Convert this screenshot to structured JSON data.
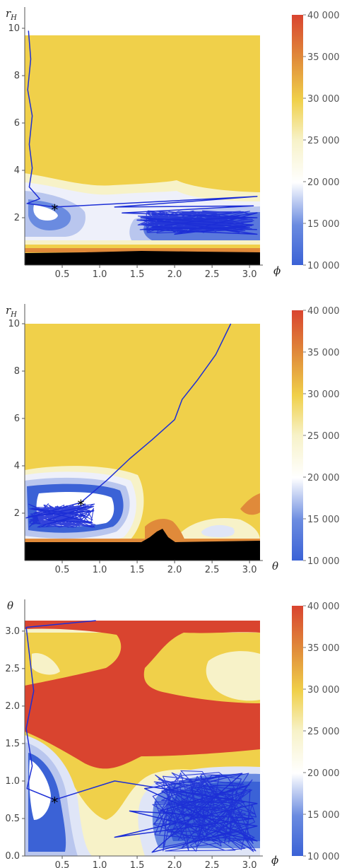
{
  "colors": {
    "low": "#3b62d6",
    "mid": "#ffffff",
    "high": "#d9442f",
    "plateau": "#f0d04a",
    "excluded": "#000000",
    "trajectory": "#1d2fd6",
    "marker": "#000000"
  },
  "chart_data": [
    {
      "type": "heatmap",
      "subtype": "filled-contour-with-trajectory",
      "xlabel": "ϕ",
      "ylabel": "r_H",
      "ylabel_main": "r",
      "ylabel_sub": "H",
      "xlim": [
        0,
        3.14
      ],
      "ylim": [
        0,
        10
      ],
      "xticks": [
        0.5,
        1.0,
        1.5,
        2.0,
        2.5,
        3.0
      ],
      "xtick_labels": [
        "0.5",
        "1.0",
        "1.5",
        "2.0",
        "2.5",
        "3.0"
      ],
      "yticks": [
        2,
        4,
        6,
        8,
        10
      ],
      "ytick_labels": [
        "2",
        "4",
        "6",
        "8",
        "10"
      ],
      "colorbar": {
        "min": 10000,
        "max": 40000,
        "ticks": [
          "10 000",
          "15 000",
          "20 000",
          "25 000",
          "30 000",
          "35 000",
          "40 000"
        ]
      },
      "optimum": {
        "x": 0.4,
        "y": 2.45
      },
      "trajectory": [
        [
          0.05,
          9.9
        ],
        [
          0.08,
          8.7
        ],
        [
          0.04,
          7.4
        ],
        [
          0.1,
          6.3
        ],
        [
          0.06,
          5.1
        ],
        [
          0.1,
          4.1
        ],
        [
          0.06,
          3.3
        ],
        [
          0.2,
          2.8
        ],
        [
          0.03,
          2.6
        ],
        [
          0.4,
          2.45
        ],
        [
          3.1,
          2.9
        ],
        [
          1.2,
          2.45
        ],
        [
          3.05,
          2.5
        ],
        [
          1.3,
          2.2
        ],
        [
          3.1,
          2.0
        ],
        [
          1.5,
          1.9
        ],
        [
          3.0,
          1.6
        ],
        [
          1.6,
          1.5
        ],
        [
          3.1,
          1.3
        ],
        [
          1.55,
          2.0
        ],
        [
          3.05,
          1.7
        ],
        [
          2.0,
          1.3
        ],
        [
          3.1,
          2.2
        ],
        [
          1.7,
          1.6
        ],
        [
          3.1,
          1.5
        ]
      ],
      "dense_region": {
        "x": [
          1.5,
          3.1
        ],
        "y": [
          1.35,
          2.3
        ]
      }
    },
    {
      "type": "heatmap",
      "subtype": "filled-contour-with-trajectory",
      "xlabel": "θ",
      "ylabel": "r_H",
      "ylabel_main": "r",
      "ylabel_sub": "H",
      "xlim": [
        0,
        3.14
      ],
      "ylim": [
        0,
        10
      ],
      "xticks": [
        0.5,
        1.0,
        1.5,
        2.0,
        2.5,
        3.0
      ],
      "xtick_labels": [
        "0.5",
        "1.0",
        "1.5",
        "2.0",
        "2.5",
        "3.0"
      ],
      "yticks": [
        2,
        4,
        6,
        8,
        10
      ],
      "ytick_labels": [
        "2",
        "4",
        "6",
        "8",
        "10"
      ],
      "colorbar": {
        "min": 10000,
        "max": 40000,
        "ticks": [
          "10 000",
          "15 000",
          "20 000",
          "25 000",
          "30 000",
          "35 000",
          "40 000"
        ]
      },
      "optimum": {
        "x": 0.75,
        "y": 2.45
      },
      "trajectory": [
        [
          2.75,
          10.0
        ],
        [
          2.55,
          8.7
        ],
        [
          2.3,
          7.6
        ],
        [
          2.1,
          6.8
        ],
        [
          2.0,
          5.95
        ],
        [
          1.7,
          5.1
        ],
        [
          1.4,
          4.3
        ],
        [
          1.1,
          3.4
        ],
        [
          0.75,
          2.45
        ],
        [
          0.02,
          1.8
        ],
        [
          0.85,
          2.3
        ],
        [
          0.3,
          1.7
        ],
        [
          0.9,
          1.6
        ],
        [
          0.1,
          2.2
        ],
        [
          0.8,
          1.9
        ],
        [
          0.25,
          1.5
        ],
        [
          0.92,
          2.1
        ],
        [
          0.15,
          1.9
        ]
      ],
      "dense_region": {
        "x": [
          0.05,
          0.95
        ],
        "y": [
          1.4,
          2.4
        ]
      }
    },
    {
      "type": "heatmap",
      "subtype": "filled-contour-with-trajectory",
      "xlabel": "ϕ",
      "ylabel": "θ",
      "ylabel_main": "θ",
      "ylabel_sub": "",
      "xlim": [
        0,
        3.14
      ],
      "ylim": [
        0,
        3.14
      ],
      "xticks": [
        0.5,
        1.0,
        1.5,
        2.0,
        2.5,
        3.0
      ],
      "xtick_labels": [
        "0.5",
        "1.0",
        "1.5",
        "2.0",
        "2.5",
        "3.0"
      ],
      "yticks": [
        0.0,
        0.5,
        1.0,
        1.5,
        2.0,
        2.5,
        3.0
      ],
      "ytick_labels": [
        "0.0",
        "0.5",
        "1.0",
        "1.5",
        "2.0",
        "2.5",
        "3.0"
      ],
      "colorbar": {
        "min": 10000,
        "max": 40000,
        "ticks": [
          "10 000",
          "15 000",
          "20 000",
          "25 000",
          "30 000",
          "35 000",
          "40 000"
        ]
      },
      "optimum": {
        "x": 0.4,
        "y": 0.75
      },
      "trajectory": [
        [
          0.95,
          3.14
        ],
        [
          0.02,
          3.05
        ],
        [
          0.12,
          2.2
        ],
        [
          0.02,
          1.7
        ],
        [
          0.1,
          1.2
        ],
        [
          0.03,
          0.9
        ],
        [
          0.4,
          0.75
        ],
        [
          1.2,
          1.0
        ],
        [
          3.1,
          0.7
        ],
        [
          1.2,
          0.25
        ],
        [
          3.05,
          0.5
        ],
        [
          1.4,
          0.6
        ],
        [
          3.1,
          0.2
        ],
        [
          1.6,
          0.9
        ],
        [
          2.9,
          1.1
        ],
        [
          1.7,
          0.05
        ],
        [
          3.1,
          0.4
        ],
        [
          1.8,
          0.6
        ],
        [
          3.0,
          0.95
        ]
      ],
      "dense_region": {
        "x": [
          1.7,
          3.1
        ],
        "y": [
          0.05,
          1.15
        ]
      }
    }
  ]
}
